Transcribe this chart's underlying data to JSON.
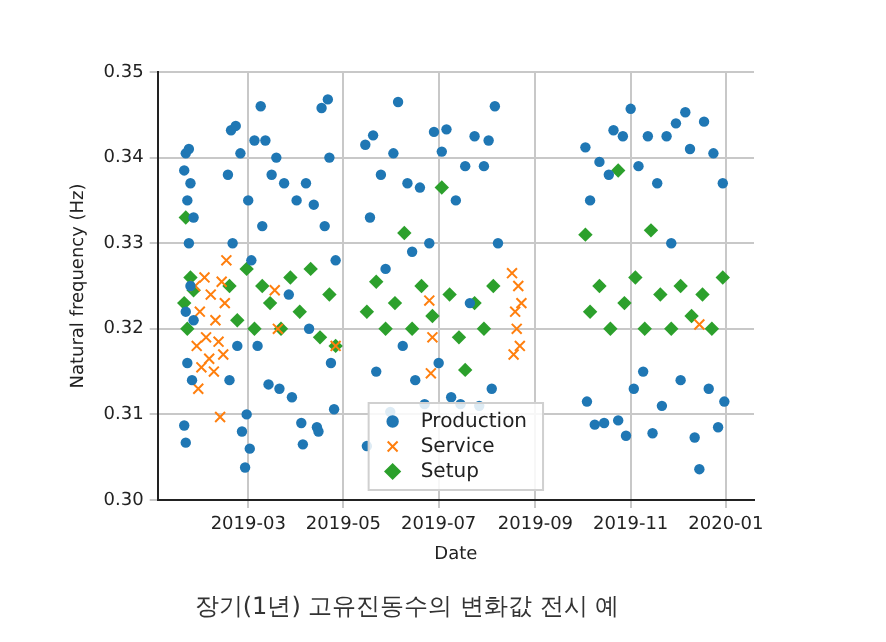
{
  "chart_data": {
    "type": "scatter",
    "title": "장기(1년) 고유진동수의 변화값 전시 예",
    "xlabel": "Date",
    "ylabel": "Natural frequency (Hz)",
    "xlim": [
      "2019-01-02",
      "2020-01-19"
    ],
    "xticks": [
      {
        "value": "2019-03-01",
        "label": "2019-03"
      },
      {
        "value": "2019-05-01",
        "label": "2019-05"
      },
      {
        "value": "2019-07-01",
        "label": "2019-07"
      },
      {
        "value": "2019-09-01",
        "label": "2019-09"
      },
      {
        "value": "2019-11-01",
        "label": "2019-11"
      },
      {
        "value": "2020-01-01",
        "label": "2020-01"
      }
    ],
    "ylim": [
      0.3,
      0.35
    ],
    "yticks": [
      {
        "value": 0.3,
        "label": "0.30"
      },
      {
        "value": 0.31,
        "label": "0.31"
      },
      {
        "value": 0.32,
        "label": "0.32"
      },
      {
        "value": 0.33,
        "label": "0.33"
      },
      {
        "value": 0.34,
        "label": "0.34"
      },
      {
        "value": 0.35,
        "label": "0.35"
      }
    ],
    "grid": true,
    "legend": "bottom",
    "series": [
      {
        "name": "Production",
        "color": "#1f77b4",
        "marker": "circle",
        "x": [
          "2019-01-19",
          "2019-01-19",
          "2019-01-20",
          "2019-01-20",
          "2019-01-21",
          "2019-01-21",
          "2019-01-22",
          "2019-01-22",
          "2019-01-23",
          "2019-01-24",
          "2019-01-25",
          "2019-01-25",
          "2019-01-20",
          "2019-01-23",
          "2019-02-16",
          "2019-02-17",
          "2019-02-18",
          "2019-02-19",
          "2019-02-21",
          "2019-02-22",
          "2019-02-24",
          "2019-02-25",
          "2019-02-27",
          "2019-02-28",
          "2019-03-01",
          "2019-03-02",
          "2019-03-03",
          "2019-03-05",
          "2019-03-07",
          "2019-03-09",
          "2019-03-10",
          "2019-03-12",
          "2019-03-14",
          "2019-03-16",
          "2019-03-19",
          "2019-03-21",
          "2019-03-24",
          "2019-03-27",
          "2019-03-29",
          "2019-04-01",
          "2019-04-04",
          "2019-04-05",
          "2019-04-07",
          "2019-04-09",
          "2019-04-12",
          "2019-04-14",
          "2019-04-15",
          "2019-04-17",
          "2019-04-19",
          "2019-04-21",
          "2019-04-22",
          "2019-04-23",
          "2019-04-25",
          "2019-04-26",
          "2019-05-15",
          "2019-05-16",
          "2019-05-18",
          "2019-05-20",
          "2019-05-22",
          "2019-05-25",
          "2019-05-28",
          "2019-05-31",
          "2019-06-02",
          "2019-06-05",
          "2019-06-08",
          "2019-06-11",
          "2019-06-14",
          "2019-06-16",
          "2019-06-19",
          "2019-06-22",
          "2019-06-25",
          "2019-06-28",
          "2019-07-01",
          "2019-07-03",
          "2019-07-06",
          "2019-07-09",
          "2019-07-12",
          "2019-07-15",
          "2019-07-18",
          "2019-07-21",
          "2019-07-24",
          "2019-07-27",
          "2019-07-30",
          "2019-08-02",
          "2019-08-04",
          "2019-08-06",
          "2019-08-07",
          "2019-08-08",
          "2019-10-03",
          "2019-10-04",
          "2019-10-06",
          "2019-10-09",
          "2019-10-12",
          "2019-10-15",
          "2019-10-18",
          "2019-10-21",
          "2019-10-24",
          "2019-10-27",
          "2019-10-29",
          "2019-11-01",
          "2019-11-03",
          "2019-11-06",
          "2019-11-09",
          "2019-11-12",
          "2019-11-15",
          "2019-11-18",
          "2019-11-21",
          "2019-11-24",
          "2019-11-27",
          "2019-11-30",
          "2019-12-03",
          "2019-12-06",
          "2019-12-09",
          "2019-12-12",
          "2019-12-15",
          "2019-12-18",
          "2019-12-21",
          "2019-12-24",
          "2019-12-27",
          "2019-12-30",
          "2019-12-31"
        ],
        "values": [
          0.3385,
          0.3087,
          0.3067,
          0.3405,
          0.335,
          0.316,
          0.33,
          0.341,
          0.325,
          0.314,
          0.333,
          0.321,
          0.322,
          0.337,
          0.338,
          0.314,
          0.3432,
          0.33,
          0.3437,
          0.318,
          0.3405,
          0.308,
          0.3038,
          0.31,
          0.335,
          0.306,
          0.328,
          0.342,
          0.318,
          0.346,
          0.332,
          0.342,
          0.3135,
          0.338,
          0.34,
          0.313,
          0.337,
          0.324,
          0.312,
          0.335,
          0.309,
          0.3065,
          0.337,
          0.32,
          0.3345,
          0.3085,
          0.308,
          0.3458,
          0.332,
          0.3468,
          0.34,
          0.316,
          0.3106,
          0.328,
          0.3415,
          0.3063,
          0.333,
          0.3426,
          0.315,
          0.338,
          0.327,
          0.3103,
          0.3405,
          0.3465,
          0.318,
          0.337,
          0.329,
          0.314,
          0.3365,
          0.3112,
          0.33,
          0.343,
          0.316,
          0.3407,
          0.3433,
          0.312,
          0.335,
          0.3112,
          0.339,
          0.323,
          0.3425,
          0.311,
          0.339,
          0.342,
          0.313,
          0.346,
          null,
          0.33,
          0.3412,
          0.3115,
          0.335,
          0.3088,
          0.3395,
          0.309,
          0.338,
          0.3432,
          0.3093,
          0.3425,
          0.3075,
          0.3457,
          0.313,
          0.339,
          0.315,
          0.3425,
          0.3078,
          0.337,
          0.311,
          0.3425,
          0.33,
          0.344,
          0.314,
          0.3453,
          0.341,
          0.3073,
          0.3036,
          0.3442,
          0.313,
          0.3405,
          0.3085,
          0.337,
          0.3115
        ]
      },
      {
        "name": "Service",
        "color": "#ff7f0e",
        "marker": "cross",
        "x": [
          "2019-01-26",
          "2019-01-27",
          "2019-01-28",
          "2019-01-29",
          "2019-01-30",
          "2019-02-01",
          "2019-02-02",
          "2019-02-04",
          "2019-02-05",
          "2019-02-07",
          "2019-02-08",
          "2019-02-10",
          "2019-02-11",
          "2019-02-12",
          "2019-02-13",
          "2019-02-14",
          "2019-02-15",
          "2019-03-18",
          "2019-03-20",
          "2019-04-26",
          "2019-06-25",
          "2019-06-26",
          "2019-06-27",
          "2019-08-17",
          "2019-08-18",
          "2019-08-19",
          "2019-08-20",
          "2019-08-21",
          "2019-08-22",
          "2019-08-23",
          "2019-12-15"
        ],
        "values": [
          0.325,
          0.318,
          0.313,
          0.322,
          0.3155,
          0.326,
          0.319,
          0.3165,
          0.324,
          0.315,
          0.321,
          0.3185,
          0.3097,
          0.3255,
          0.317,
          0.323,
          0.328,
          0.3245,
          0.32,
          0.318,
          0.3233,
          0.3148,
          0.319,
          0.3265,
          0.317,
          0.322,
          0.32,
          0.325,
          0.318,
          0.323,
          0.3205
        ]
      },
      {
        "name": "Setup",
        "color": "#2ca02c",
        "marker": "diamond",
        "x": [
          "2019-01-19",
          "2019-01-20",
          "2019-01-21",
          "2019-01-23",
          "2019-01-25",
          "2019-02-17",
          "2019-02-22",
          "2019-02-28",
          "2019-03-05",
          "2019-03-10",
          "2019-03-15",
          "2019-03-22",
          "2019-03-28",
          "2019-04-03",
          "2019-04-10",
          "2019-04-16",
          "2019-04-22",
          "2019-04-26",
          "2019-05-16",
          "2019-05-22",
          "2019-05-28",
          "2019-06-03",
          "2019-06-09",
          "2019-06-14",
          "2019-06-20",
          "2019-06-27",
          "2019-07-03",
          "2019-07-08",
          "2019-07-14",
          "2019-07-18",
          "2019-07-24",
          "2019-07-30",
          "2019-08-05",
          "2019-10-03",
          "2019-10-06",
          "2019-10-12",
          "2019-10-19",
          "2019-10-24",
          "2019-10-28",
          "2019-11-04",
          "2019-11-10",
          "2019-11-14",
          "2019-11-20",
          "2019-11-27",
          "2019-12-03",
          "2019-12-10",
          "2019-12-17",
          "2019-12-23",
          "2019-12-30"
        ],
        "values": [
          0.323,
          0.333,
          0.32,
          0.326,
          0.3245,
          0.325,
          0.321,
          0.327,
          0.32,
          0.325,
          0.323,
          0.32,
          0.326,
          0.322,
          0.327,
          0.319,
          0.324,
          0.318,
          0.322,
          0.3255,
          0.32,
          0.323,
          0.3312,
          0.32,
          0.325,
          0.3215,
          0.3365,
          0.324,
          0.319,
          0.3152,
          0.323,
          0.32,
          0.325,
          0.331,
          0.322,
          0.325,
          0.32,
          0.3385,
          0.323,
          0.326,
          0.32,
          0.3315,
          0.324,
          0.32,
          0.325,
          0.3215,
          0.324,
          0.32,
          0.326
        ]
      }
    ]
  }
}
